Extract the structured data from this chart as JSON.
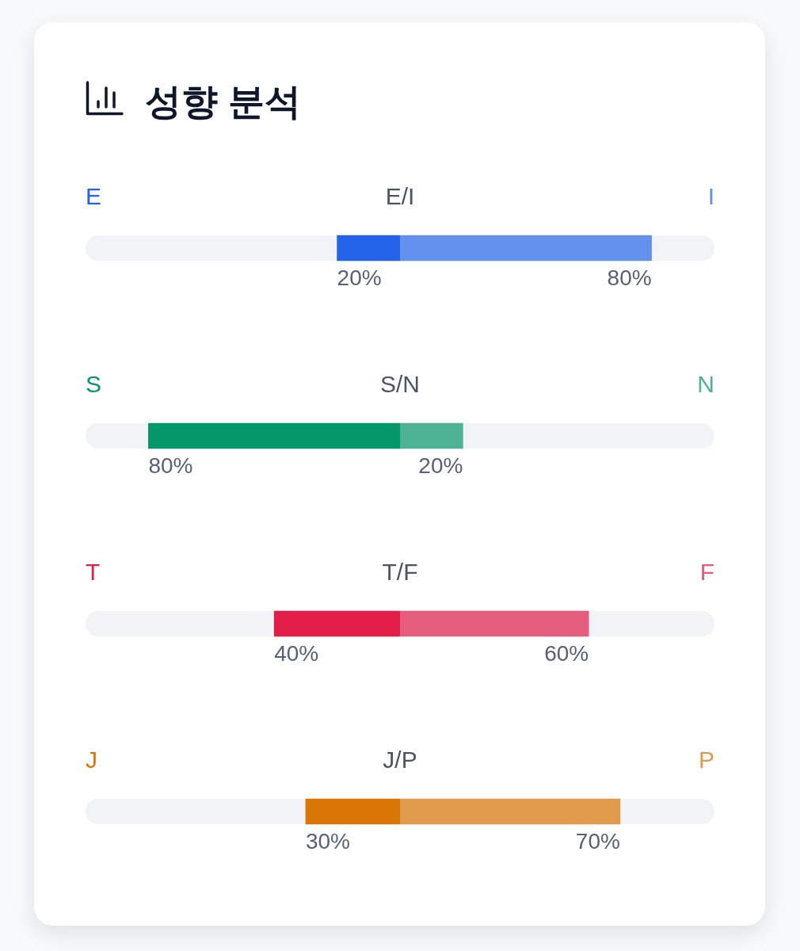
{
  "chart_data": [
    {
      "type": "bar",
      "title": "성향 분석",
      "orientation": "horizontal",
      "categories": [
        "E/I",
        "S/N",
        "T/F",
        "J/P"
      ],
      "xlim": [
        100,
        0
      ],
      "tick_labels": "y",
      "series": [
        {
          "name": "E",
          "color": "#2563eb",
          "values": [
            20,
            null,
            null,
            null
          ],
          "value_labels": [
            "20%",
            null,
            null,
            null
          ]
        },
        {
          "name": "S",
          "color": "#059669",
          "values": [
            null,
            80,
            null,
            null
          ],
          "value_labels": [
            null,
            "80%",
            null,
            null
          ]
        },
        {
          "name": "T",
          "color": "#e11d48",
          "values": [
            null,
            null,
            40,
            null
          ],
          "value_labels": [
            null,
            null,
            "40%",
            null
          ]
        },
        {
          "name": "J",
          "color": "#d97706",
          "values": [
            null,
            null,
            null,
            30
          ],
          "value_labels": [
            null,
            null,
            null,
            "30%"
          ]
        }
      ]
    },
    {
      "type": "bar",
      "orientation": "horizontal",
      "categories": [
        null,
        null,
        null,
        null
      ],
      "xlim": [
        0,
        100
      ],
      "tick_labels": false,
      "series": [
        {
          "name": "I",
          "color": "#6490ee",
          "values": [
            80,
            null,
            null,
            null
          ],
          "value_labels": [
            "80%",
            null,
            null,
            null
          ]
        },
        {
          "name": "N",
          "color": "#4db393",
          "values": [
            null,
            20,
            null,
            null
          ],
          "value_labels": [
            null,
            "20%",
            null,
            null
          ]
        },
        {
          "name": "F",
          "color": "#e55d7c",
          "values": [
            null,
            null,
            60,
            null
          ],
          "value_labels": [
            null,
            null,
            "60%",
            null
          ]
        },
        {
          "name": "P",
          "color": "#df9a4c",
          "values": [
            null,
            null,
            null,
            70
          ],
          "value_labels": [
            null,
            null,
            null,
            "70%"
          ]
        }
      ]
    }
  ]
}
